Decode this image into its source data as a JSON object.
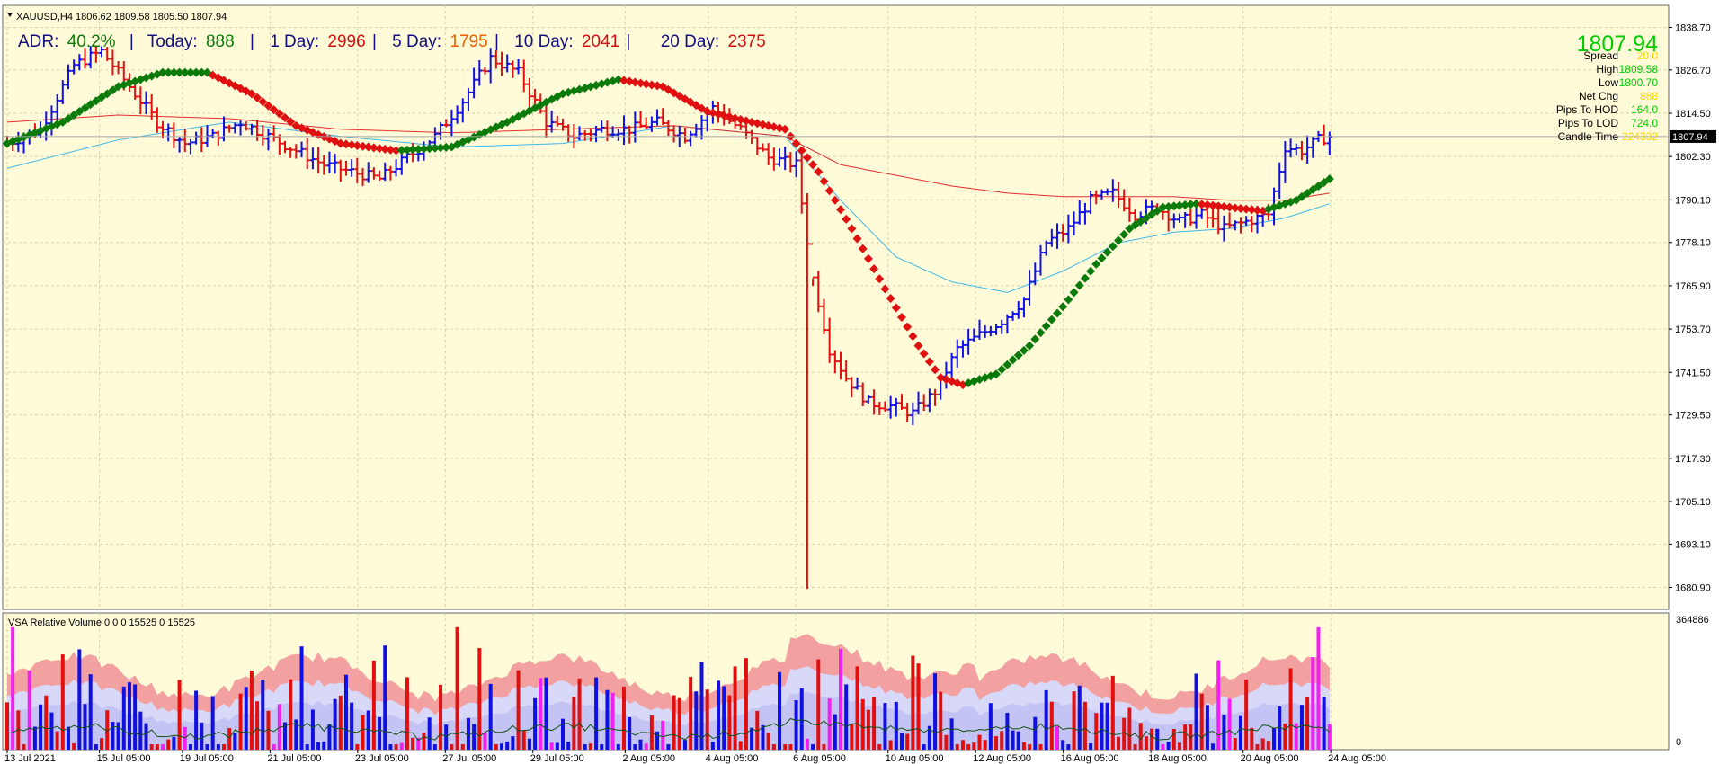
{
  "window": {
    "title_line": "XAUUSD,H4  1806.62 1809.58 1805.50 1807.94",
    "menu_icon": "triangle-down-icon"
  },
  "adr_bar": {
    "adr_label": "ADR:",
    "adr_value": "40.2%",
    "sep1": "|",
    "today_label": "Today:",
    "today_value": "888",
    "sep2": "|",
    "d1_label": "1 Day:",
    "d1_value": "2996",
    "sep3": "|",
    "d5_label": "5 Day:",
    "d5_value": "1795",
    "sep4": "|",
    "d10_label": "10 Day:",
    "d10_value": "2041",
    "sep5": "|",
    "d20_label": "20 Day:",
    "d20_value": "2375"
  },
  "info_panel": {
    "price": "1807.94",
    "rows": [
      {
        "label": "Spread",
        "value": "20.0",
        "color": "#FFD700"
      },
      {
        "label": "High",
        "value": "1809.58",
        "color": "#00CC00"
      },
      {
        "label": "Low",
        "value": "1800.70",
        "color": "#00CC00"
      },
      {
        "label": "Net Chg",
        "value": "888",
        "color": "#FFD700"
      },
      {
        "label": "Pips To HOD",
        "value": "164.0",
        "color": "#00CC00"
      },
      {
        "label": "Pips To LOD",
        "value": "724.0",
        "color": "#00CC00"
      },
      {
        "label": "Candle Time",
        "value": "224332",
        "color": "#FFD700"
      }
    ]
  },
  "current_price_tag": "1807.94",
  "vsa_panel": {
    "title": "VSA Relative Volume 0 0 0 15525 0 15525",
    "max_label": "364886",
    "min_label": "0"
  },
  "colors": {
    "background": "#FFFAD8",
    "grid": "#D8D0A8",
    "bull_bar": "#1010E0",
    "bear_bar": "#E01010",
    "ma_fast": "#3EB8E8",
    "ma_slow": "#E03030",
    "trend_up": "#0A7A0A",
    "trend_down": "#E01010",
    "vol_band_top": "#F2A0A0",
    "vol_band_mid": "#D8D8F8",
    "vol_band_low": "#C4C4F4",
    "vol_climax": "#F020F0",
    "adr_text": "#101080",
    "adr_green": "#0A7A0A",
    "adr_red": "#D01010",
    "adr_orange": "#F06000"
  },
  "chart_data": {
    "type": "candlestick",
    "symbol": "XAUUSD",
    "timeframe": "H4",
    "ylim": [
      1674.7,
      1844.9
    ],
    "y_ticks": [
      "1838.70",
      "1826.70",
      "1814.50",
      "1802.30",
      "1790.10",
      "1778.10",
      "1765.90",
      "1753.70",
      "1741.50",
      "1729.50",
      "1717.30",
      "1705.10",
      "1693.10",
      "1680.90"
    ],
    "x_ticks": [
      "13 Jul 2021",
      "15 Jul 05:00",
      "19 Jul 05:00",
      "21 Jul 05:00",
      "23 Jul 05:00",
      "27 Jul 05:00",
      "29 Jul 05:00",
      "2 Aug 05:00",
      "4 Aug 05:00",
      "6 Aug 05:00",
      "10 Aug 05:00",
      "12 Aug 05:00",
      "16 Aug 05:00",
      "18 Aug 05:00",
      "20 Aug 05:00",
      "24 Aug 05:00"
    ],
    "price_anchors": [
      [
        0,
        1806
      ],
      [
        6,
        1810
      ],
      [
        12,
        1828
      ],
      [
        17,
        1832
      ],
      [
        22,
        1822
      ],
      [
        27,
        1812
      ],
      [
        32,
        1806
      ],
      [
        37,
        1808
      ],
      [
        42,
        1812
      ],
      [
        47,
        1808
      ],
      [
        52,
        1804
      ],
      [
        57,
        1800
      ],
      [
        62,
        1798
      ],
      [
        67,
        1796
      ],
      [
        72,
        1802
      ],
      [
        77,
        1808
      ],
      [
        82,
        1818
      ],
      [
        87,
        1830
      ],
      [
        92,
        1826
      ],
      [
        97,
        1812
      ],
      [
        102,
        1808
      ],
      [
        107,
        1810
      ],
      [
        112,
        1810
      ],
      [
        117,
        1812
      ],
      [
        122,
        1808
      ],
      [
        127,
        1816
      ],
      [
        132,
        1810
      ],
      [
        137,
        1802
      ],
      [
        142,
        1800
      ],
      [
        145,
        1768
      ],
      [
        148,
        1748
      ],
      [
        151,
        1740
      ],
      [
        155,
        1733
      ],
      [
        159,
        1732
      ],
      [
        163,
        1730
      ],
      [
        167,
        1736
      ],
      [
        171,
        1748
      ],
      [
        175,
        1752
      ],
      [
        179,
        1756
      ],
      [
        183,
        1762
      ],
      [
        187,
        1778
      ],
      [
        191,
        1782
      ],
      [
        195,
        1790
      ],
      [
        199,
        1792
      ],
      [
        203,
        1786
      ],
      [
        207,
        1788
      ],
      [
        211,
        1784
      ],
      [
        215,
        1786
      ],
      [
        219,
        1782
      ],
      [
        223,
        1784
      ],
      [
        227,
        1786
      ],
      [
        230,
        1805
      ],
      [
        233,
        1804
      ],
      [
        236,
        1807
      ],
      [
        238,
        1808
      ]
    ],
    "series": [
      {
        "name": "",
        "kind": "ma-fast",
        "anchors": [
          [
            0,
            1799
          ],
          [
            20,
            1807
          ],
          [
            40,
            1812
          ],
          [
            60,
            1808
          ],
          [
            80,
            1805
          ],
          [
            100,
            1806
          ],
          [
            120,
            1811
          ],
          [
            140,
            1808
          ],
          [
            150,
            1790
          ],
          [
            160,
            1774
          ],
          [
            170,
            1767
          ],
          [
            180,
            1764
          ],
          [
            190,
            1770
          ],
          [
            200,
            1778
          ],
          [
            210,
            1781
          ],
          [
            220,
            1782
          ],
          [
            230,
            1785
          ],
          [
            238,
            1789
          ]
        ]
      },
      {
        "name": "",
        "kind": "ma-slow",
        "anchors": [
          [
            0,
            1812
          ],
          [
            20,
            1814
          ],
          [
            40,
            1813
          ],
          [
            60,
            1810
          ],
          [
            80,
            1809
          ],
          [
            100,
            1810
          ],
          [
            120,
            1811
          ],
          [
            140,
            1808
          ],
          [
            150,
            1800
          ],
          [
            160,
            1797
          ],
          [
            170,
            1794
          ],
          [
            180,
            1792
          ],
          [
            190,
            1791
          ],
          [
            200,
            1791
          ],
          [
            210,
            1791
          ],
          [
            220,
            1790
          ],
          [
            230,
            1790
          ],
          [
            238,
            1792
          ]
        ]
      },
      {
        "name": "",
        "kind": "trend-dots",
        "anchors": [
          [
            0,
            1806
          ],
          [
            10,
            1812
          ],
          [
            20,
            1822
          ],
          [
            28,
            1826
          ],
          [
            36,
            1826
          ],
          [
            44,
            1820
          ],
          [
            52,
            1811
          ],
          [
            60,
            1806
          ],
          [
            70,
            1804
          ],
          [
            80,
            1805
          ],
          [
            90,
            1812
          ],
          [
            100,
            1820
          ],
          [
            110,
            1824
          ],
          [
            118,
            1822
          ],
          [
            126,
            1815
          ],
          [
            134,
            1812
          ],
          [
            140,
            1810
          ],
          [
            146,
            1798
          ],
          [
            152,
            1782
          ],
          [
            158,
            1765
          ],
          [
            164,
            1749
          ],
          [
            168,
            1740
          ],
          [
            172,
            1738
          ],
          [
            178,
            1741
          ],
          [
            184,
            1749
          ],
          [
            190,
            1760
          ],
          [
            196,
            1772
          ],
          [
            202,
            1782
          ],
          [
            208,
            1788
          ],
          [
            214,
            1789
          ],
          [
            220,
            1788
          ],
          [
            226,
            1787
          ],
          [
            232,
            1790
          ],
          [
            238,
            1796
          ]
        ]
      }
    ],
    "volume_ylim": [
      0,
      364886
    ],
    "volume_note": "relative volume histogram with blue (up) and red (down) bars over shaded bands"
  }
}
